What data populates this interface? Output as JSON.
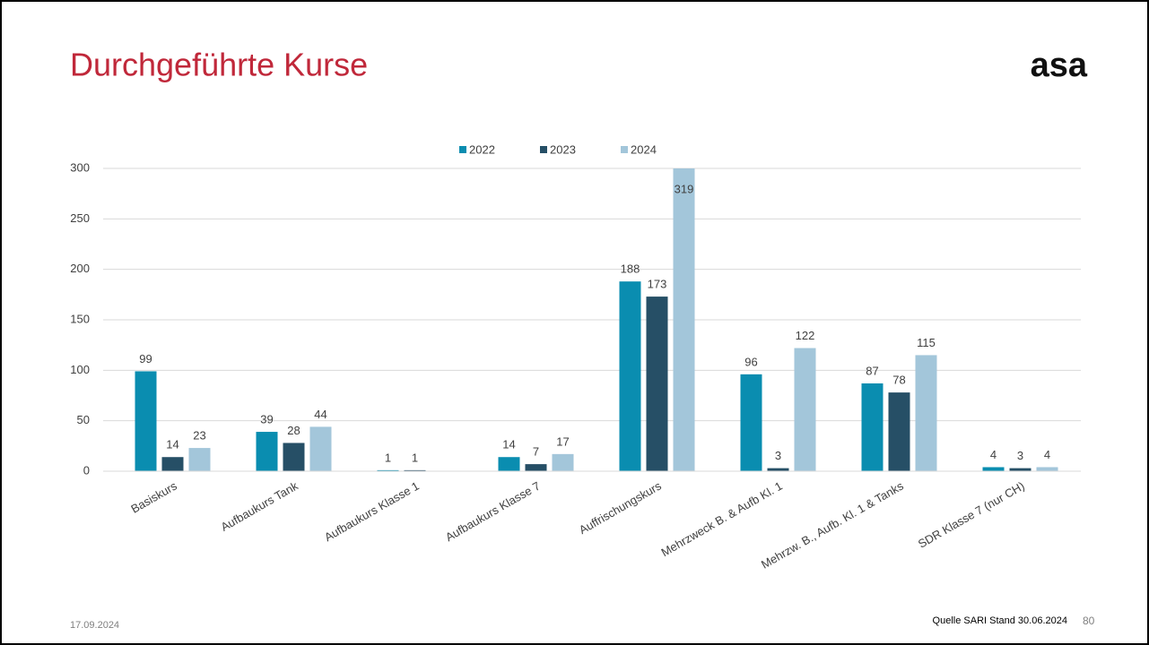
{
  "slide": {
    "title": "Durchgeführte Kurse",
    "logo": "asa",
    "date": "17.09.2024",
    "source": "Quelle SARI Stand 30.06.2024",
    "page": "80"
  },
  "chart_data": {
    "type": "bar",
    "categories": [
      "Basiskurs",
      "Aufbaukurs Tank",
      "Aufbaukurs Klasse 1",
      "Aufbaukurs Klasse 7",
      "Auffrischungskurs",
      "Mehrzweck B. & Aufb Kl. 1",
      "Mehrzw. B., Aufb. Kl. 1 & Tanks",
      "SDR Klasse 7 (nur CH)"
    ],
    "series": [
      {
        "name": "2022",
        "color": "#0a8db0",
        "values": [
          99,
          39,
          1,
          14,
          188,
          96,
          87,
          4
        ]
      },
      {
        "name": "2023",
        "color": "#264f66",
        "values": [
          14,
          28,
          1,
          7,
          173,
          3,
          78,
          3
        ]
      },
      {
        "name": "2024",
        "color": "#a3c6da",
        "values": [
          23,
          44,
          null,
          17,
          319,
          122,
          115,
          4
        ]
      }
    ],
    "ylim": [
      0,
      300
    ],
    "yticks": [
      0,
      50,
      100,
      150,
      200,
      250,
      300
    ],
    "grid": true,
    "legend": "top"
  }
}
